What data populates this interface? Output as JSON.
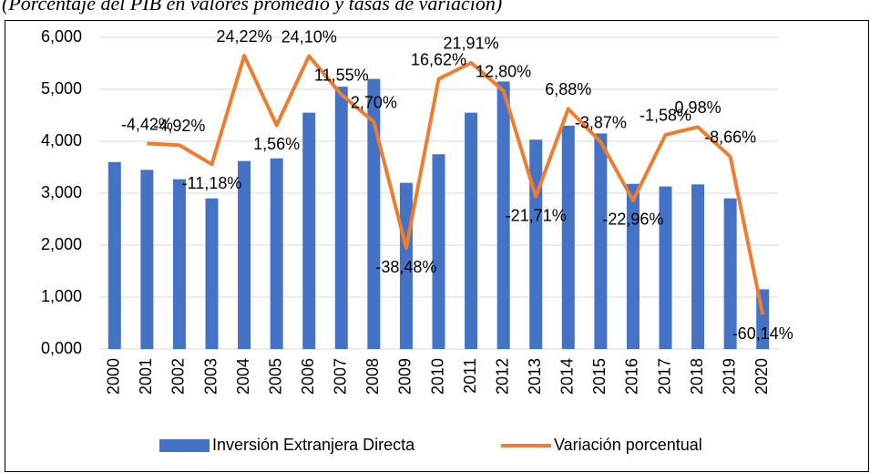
{
  "chart_data": {
    "type": "bar-line",
    "subtitle": "(Porcentaje del PIB en valores promedio y tasas de variación)",
    "categories": [
      "2000",
      "2001",
      "2002",
      "2003",
      "2004",
      "2005",
      "2006",
      "2007",
      "2008",
      "2009",
      "2010",
      "2011",
      "2012",
      "2013",
      "2014",
      "2015",
      "2016",
      "2017",
      "2018",
      "2019",
      "2020"
    ],
    "series": [
      {
        "name": "Inversión Extranjera Directa",
        "type": "bar",
        "color": "#4472c4",
        "values": [
          3.6,
          3.45,
          3.27,
          2.9,
          3.62,
          3.67,
          4.55,
          5.05,
          5.2,
          3.2,
          3.75,
          4.55,
          5.15,
          4.03,
          4.3,
          4.15,
          3.18,
          3.13,
          3.17,
          2.9,
          1.15
        ]
      },
      {
        "name": "Variación porcentual",
        "type": "line",
        "color": "#ed7d31",
        "axis": "y2",
        "values": [
          null,
          -4.42,
          -4.92,
          -11.18,
          24.22,
          1.56,
          24.1,
          11.55,
          2.7,
          -38.48,
          16.62,
          21.91,
          12.8,
          -21.71,
          6.88,
          -3.87,
          -22.96,
          -1.58,
          0.98,
          -8.66,
          -60.14
        ],
        "value_labels": [
          null,
          "-4,42%",
          "-4,92%",
          "-11,18%",
          "24,22%",
          "1,56%",
          "24,10%",
          "11,55%",
          "2,70%",
          "-38,48%",
          "16,62%",
          "21,91%",
          "12,80%",
          "-21,71%",
          "6,88%",
          "-3,87%",
          "-22,96%",
          "-1,58%",
          "0,98%",
          "-8,66%",
          "-60,14%"
        ]
      }
    ],
    "ylim": [
      0,
      6
    ],
    "yticks": [
      {
        "value": 0,
        "label": "0,000"
      },
      {
        "value": 1,
        "label": "1,000"
      },
      {
        "value": 2,
        "label": "2,000"
      },
      {
        "value": 3,
        "label": "3,000"
      },
      {
        "value": 4,
        "label": "4,000"
      },
      {
        "value": 5,
        "label": "5,000"
      },
      {
        "value": 6,
        "label": "6,000"
      }
    ],
    "y2lim": [
      -71.4,
      30.2
    ],
    "grid": true,
    "legend": "bottom"
  }
}
